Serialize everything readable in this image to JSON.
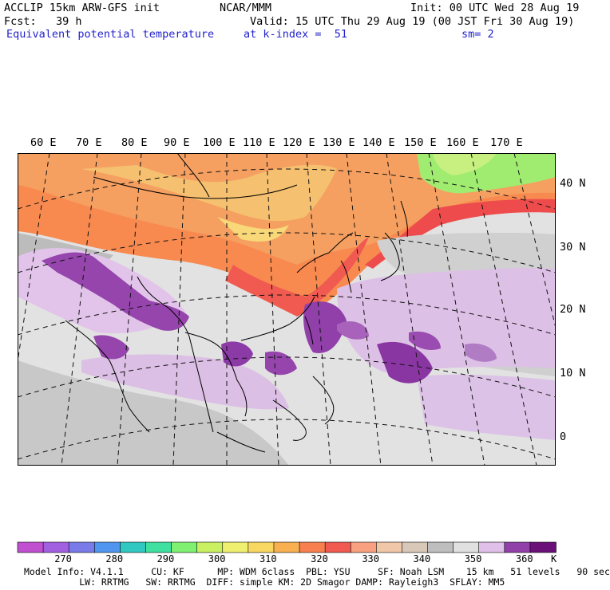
{
  "header": {
    "model_line": "ACCLIP 15km ARW-GFS init",
    "center": "NCAR/MMM",
    "init": "Init: 00 UTC Wed 28 Aug 19",
    "fcst": "Fcst:   39 h",
    "valid": "Valid: 15 UTC Thu 29 Aug 19 (00 JST Fri 30 Aug 19)",
    "field": "Equivalent potential temperature",
    "level": "at k-index =  51",
    "smooth": "sm= 2"
  },
  "longitudes": [
    "60 E",
    "70 E",
    "80 E",
    "90 E",
    "100 E",
    "110 E",
    "120 E",
    "130 E",
    "140 E",
    "150 E",
    "160 E",
    "170 E"
  ],
  "latitudes": [
    "40 N",
    "30 N",
    "20 N",
    "10 N",
    "0"
  ],
  "colorbar": {
    "colors": [
      "#c050d0",
      "#a060e0",
      "#7a7ae8",
      "#5096f0",
      "#30c8c0",
      "#40e0a0",
      "#80f070",
      "#c8f060",
      "#f0f070",
      "#f8d860",
      "#f8b050",
      "#f88050",
      "#f05a50",
      "#f8a080",
      "#f0c8a8",
      "#d8c8b8",
      "#bebebe",
      "#e0e0e0",
      "#e0c0e8",
      "#9040a8",
      "#6a1078"
    ],
    "labels": [
      "270",
      "280",
      "290",
      "300",
      "310",
      "320",
      "330",
      "340",
      "350",
      "360"
    ],
    "unit": "K"
  },
  "footer": {
    "line1": "Model Info: V4.1.1     CU: KF      MP: WDM 6class  PBL: YSU     SF: Noah LSM    15 km   51 levels   90 sec",
    "line2": "          LW: RRTMG   SW: RRTMG  DIFF: simple KM: 2D Smagor DAMP: Rayleigh3  SFLAY: MM5"
  }
}
